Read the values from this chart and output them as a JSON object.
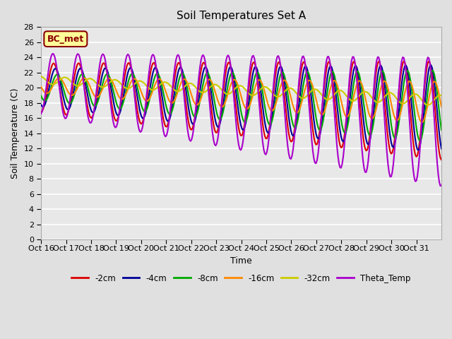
{
  "title": "Soil Temperatures Set A",
  "xlabel": "Time",
  "ylabel": "Soil Temperature (C)",
  "ylim": [
    0,
    28
  ],
  "yticks": [
    0,
    2,
    4,
    6,
    8,
    10,
    12,
    14,
    16,
    18,
    20,
    22,
    24,
    26,
    28
  ],
  "xtick_labels": [
    "Oct 16",
    "Oct 17",
    "Oct 18",
    "Oct 19",
    "Oct 20",
    "Oct 21",
    "Oct 22",
    "Oct 23",
    "Oct 24",
    "Oct 25",
    "Oct 26",
    "Oct 27",
    "Oct 28",
    "Oct 29",
    "Oct 30",
    "Oct 31"
  ],
  "bg_color": "#e0e0e0",
  "plot_bg_color": "#e8e8e8",
  "grid_color": "#ffffff",
  "annotation_text": "BC_met",
  "annotation_color": "#8b0000",
  "annotation_bg": "#ffff99",
  "series": {
    "-2cm": {
      "color": "#dd0000",
      "lw": 1.5
    },
    "-4cm": {
      "color": "#000099",
      "lw": 1.5
    },
    "-8cm": {
      "color": "#00aa00",
      "lw": 1.5
    },
    "-16cm": {
      "color": "#ff8800",
      "lw": 1.5
    },
    "-32cm": {
      "color": "#cccc00",
      "lw": 1.5
    },
    "Theta_Temp": {
      "color": "#aa00cc",
      "lw": 1.5
    }
  }
}
